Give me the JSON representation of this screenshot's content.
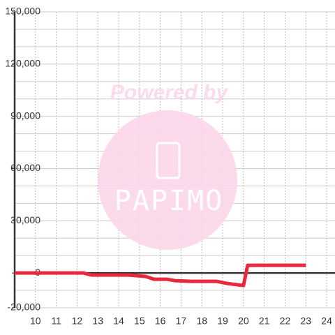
{
  "chart_data": {
    "type": "line",
    "watermark": {
      "title": "Powered by",
      "brand": "PAPIMO"
    },
    "x": [
      9,
      12.3,
      12.7,
      14.5,
      15.3,
      15.7,
      16.3,
      16.7,
      17.5,
      18.7,
      19.2,
      20,
      20.2,
      23
    ],
    "series": [
      {
        "color": "#e8283c",
        "values": [
          0,
          0,
          -1200,
          -1200,
          -2000,
          -3600,
          -3600,
          -4400,
          -4800,
          -4800,
          -6000,
          -7200,
          4400,
          4400
        ]
      }
    ],
    "xlim": [
      9,
      24.4
    ],
    "xticks": [
      10,
      11,
      12,
      13,
      14,
      15,
      16,
      17,
      18,
      19,
      20,
      21,
      22,
      23,
      24
    ],
    "ylim": [
      -20000,
      150000
    ],
    "yticks": [
      {
        "value": -20000,
        "label": "-20,000"
      },
      0,
      {
        "value": 30000,
        "label": "30,000"
      },
      {
        "value": 60000,
        "label": "60,000"
      },
      {
        "value": 90000,
        "label": "90,000"
      },
      {
        "value": 120000,
        "label": "120,000"
      },
      {
        "value": 150000,
        "label": "150,000"
      }
    ],
    "ygrid": [
      -10000,
      10000,
      20000,
      40000,
      50000,
      70000,
      80000,
      100000,
      110000,
      130000,
      140000
    ],
    "grid": true
  }
}
